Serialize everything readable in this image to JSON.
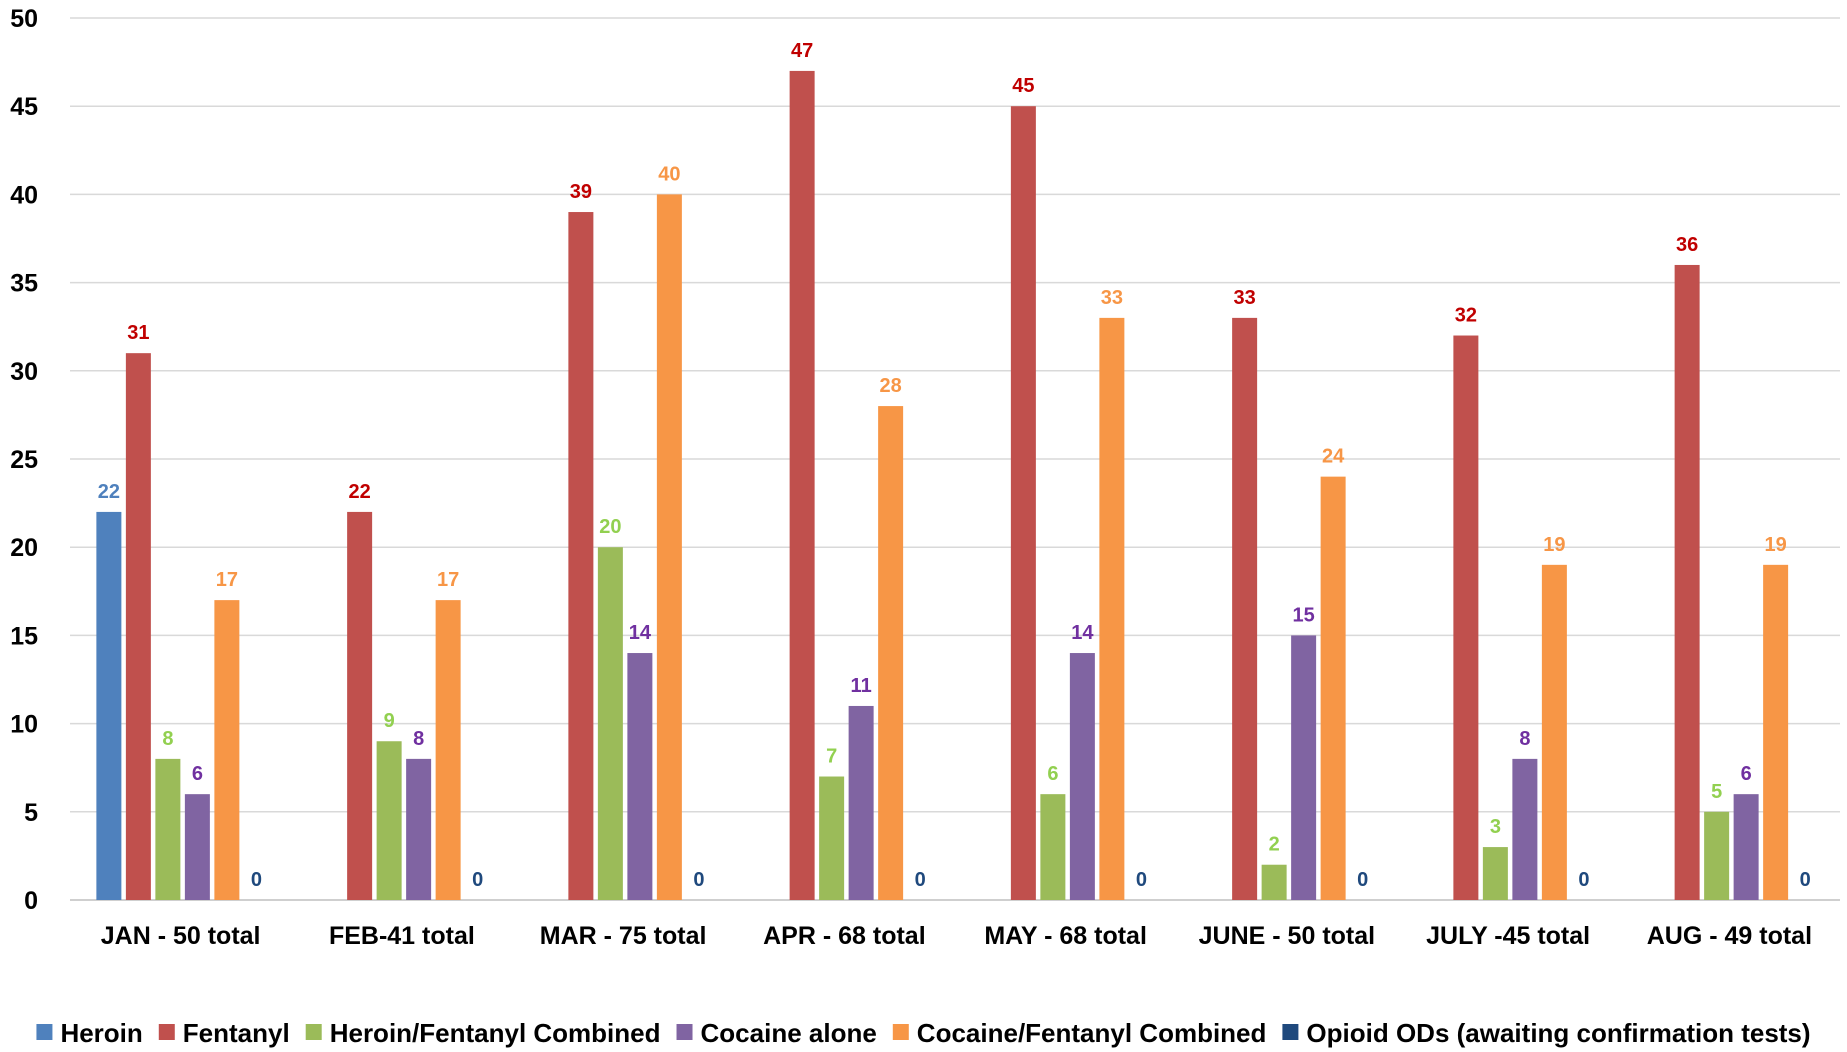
{
  "chart_data": {
    "type": "bar",
    "title": "",
    "xlabel": "",
    "ylabel": "",
    "ylim": [
      0,
      50
    ],
    "yticks": [
      "0",
      "5",
      "10",
      "15",
      "20",
      "25",
      "30",
      "35",
      "40",
      "45",
      "50"
    ],
    "grid": true,
    "legend_position": "bottom",
    "categories": [
      "JAN - 50 total",
      "FEB-41 total",
      "MAR - 75 total",
      "APR - 68 total",
      "MAY - 68 total",
      "JUNE - 50 total",
      "JULY -45 total",
      "AUG - 49 total"
    ],
    "series": [
      {
        "name": "Heroin",
        "color": "#4f81bd",
        "label_color": "#4f81bd",
        "values": [
          22,
          null,
          null,
          null,
          null,
          null,
          null,
          null
        ]
      },
      {
        "name": "Fentanyl",
        "color": "#c0504d",
        "label_color": "#c00000",
        "values": [
          31,
          22,
          39,
          47,
          45,
          33,
          32,
          36
        ]
      },
      {
        "name": "Heroin/Fentanyl Combined",
        "color": "#9bbb59",
        "label_color": "#92d050",
        "values": [
          8,
          9,
          20,
          7,
          6,
          2,
          3,
          5
        ]
      },
      {
        "name": "Cocaine alone",
        "color": "#8064a2",
        "label_color": "#7030a0",
        "values": [
          6,
          8,
          14,
          11,
          14,
          15,
          8,
          6
        ]
      },
      {
        "name": "Cocaine/Fentanyl Combined",
        "color": "#f79646",
        "label_color": "#f79646",
        "values": [
          17,
          17,
          40,
          28,
          33,
          24,
          19,
          19
        ]
      },
      {
        "name": "Opioid ODs (awaiting confirmation tests)",
        "color": "#1f497d",
        "label_color": "#1f497d",
        "values": [
          0,
          0,
          0,
          0,
          0,
          0,
          0,
          0
        ]
      }
    ]
  }
}
